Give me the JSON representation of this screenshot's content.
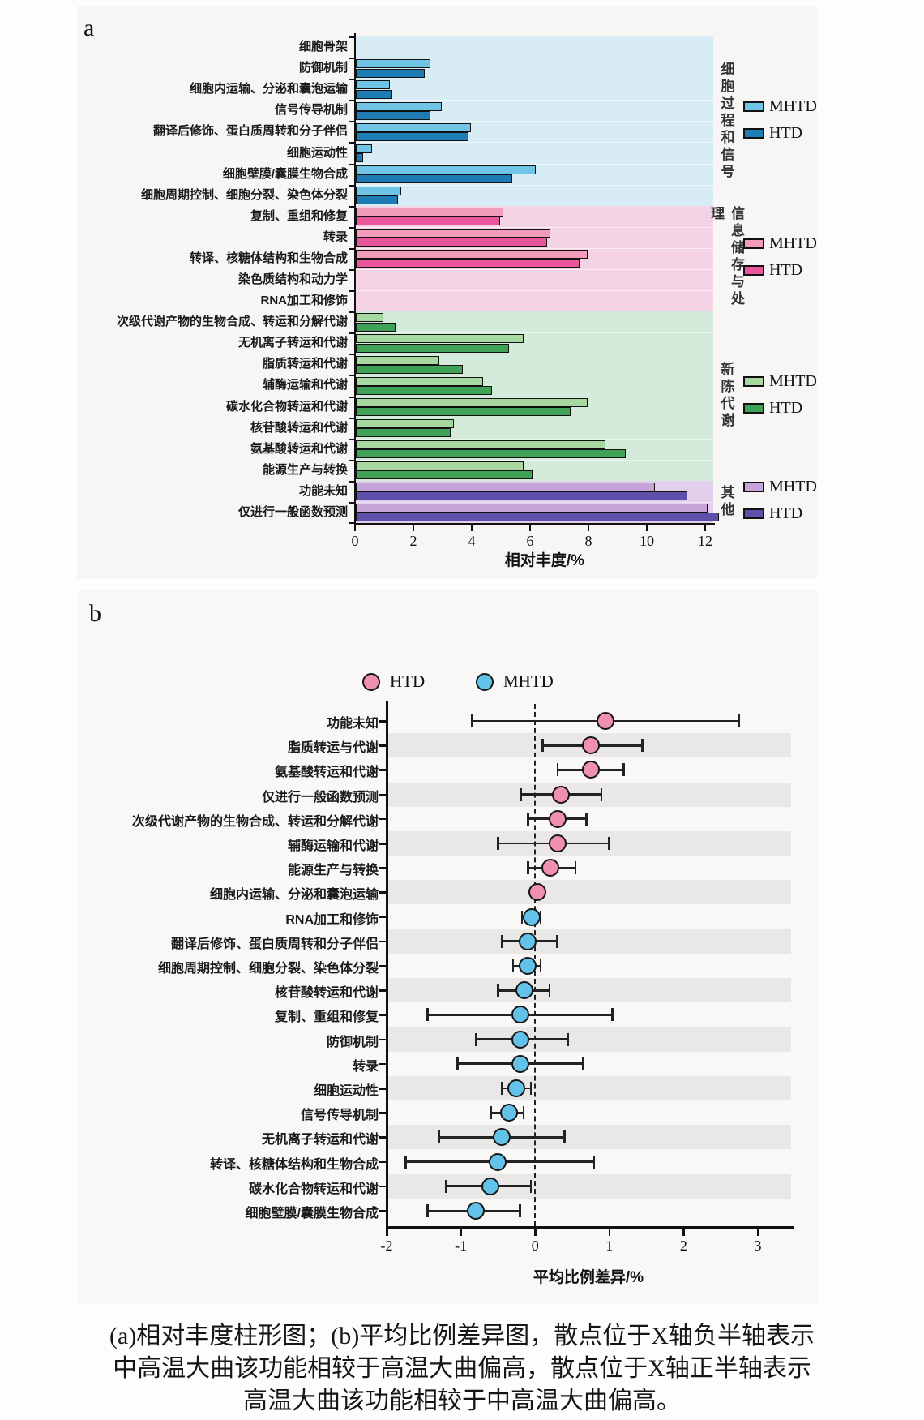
{
  "caption": {
    "lines": [
      "(a)相对丰度柱形图；(b)平均比例差异图，散点位于X轴负半轴表示",
      "中高温大曲该功能相较于高温大曲偏高，散点位于X轴正半轴表示",
      "高温大曲该功能相较于中高温大曲偏高。"
    ]
  },
  "chart_data": [
    {
      "id": "a",
      "panel_label": "a",
      "type": "bar",
      "orientation": "horizontal",
      "xlabel": "相对丰度/%",
      "x_ticks": [
        0,
        2,
        4,
        6,
        8,
        10,
        12
      ],
      "xlim": [
        0,
        13
      ],
      "grid": false,
      "legend_labels": [
        "MHTD",
        "HTD"
      ],
      "categories": [
        "细胞骨架",
        "防御机制",
        "细胞内运输、分泌和囊泡运输",
        "信号传导机制",
        "翻译后修饰、蛋白质周转和分子伴侣",
        "细胞运动性",
        "细胞壁膜/囊膜生物合成",
        "细胞周期控制、细胞分裂、染色体分裂",
        "复制、重组和修复",
        "转录",
        "转译、核糖体结构和生物合成",
        "染色质结构和动力学",
        "RNA加工和修饰",
        "次级代谢产物的生物合成、转运和分解代谢",
        "无机离子转运和代谢",
        "脂质转运和代谢",
        "辅酶运输和代谢",
        "碳水化合物转运和代谢",
        "核苷酸转运和代谢",
        "氨基酸转运和代谢",
        "能源生产与转换",
        "功能未知",
        "仅进行一般函数预测"
      ],
      "series": [
        {
          "name": "MHTD",
          "values": [
            0,
            2.5,
            1.1,
            2.9,
            3.9,
            0.5,
            6.1,
            1.5,
            5.0,
            6.6,
            7.9,
            0,
            0,
            0.9,
            5.7,
            2.8,
            4.3,
            7.9,
            3.3,
            8.5,
            5.7,
            10.2,
            12.0
          ]
        },
        {
          "name": "HTD",
          "values": [
            0,
            2.3,
            1.2,
            2.5,
            3.8,
            0.2,
            5.3,
            1.4,
            4.9,
            6.5,
            7.6,
            0,
            0,
            1.3,
            5.2,
            3.6,
            4.6,
            7.3,
            3.2,
            9.2,
            6.0,
            11.3,
            12.4
          ]
        }
      ],
      "groups": [
        {
          "label": "细胞过程和信号",
          "start": 0,
          "end": 8,
          "bg": "#d7ecf4",
          "mhtd_color": "#70c4e6",
          "htd_color": "#1d7cb4"
        },
        {
          "label": "信息储存与处理",
          "start": 8,
          "end": 13,
          "bg": "#f4d4e4",
          "mhtd_color": "#f19cbb",
          "htd_color": "#e9569b"
        },
        {
          "label": "新陈代谢",
          "start": 13,
          "end": 21,
          "bg": "#d4ebdc",
          "mhtd_color": "#a6d89f",
          "htd_color": "#3fa257"
        },
        {
          "label": "其他",
          "start": 21,
          "end": 23,
          "bg": "#e2cfeb",
          "mhtd_color": "#c6a3d8",
          "htd_color": "#5e50aa"
        }
      ]
    },
    {
      "id": "b",
      "panel_label": "b",
      "type": "scatter",
      "xlabel": "平均比例差异/%",
      "x_ticks": [
        -2,
        -1,
        0,
        1,
        2,
        3
      ],
      "xlim": [
        -2.1,
        3.45
      ],
      "zero_line": 0,
      "legend": [
        {
          "label": "HTD",
          "color": "#f08fae"
        },
        {
          "label": "MHTD",
          "color": "#62c2e8"
        }
      ],
      "points": [
        {
          "category": "功能未知",
          "series": "HTD",
          "value": 0.95,
          "ci": [
            -0.85,
            2.75
          ]
        },
        {
          "category": "脂质转运与代谢",
          "series": "HTD",
          "value": 0.75,
          "ci": [
            0.1,
            1.45
          ]
        },
        {
          "category": "氨基酸转运和代谢",
          "series": "HTD",
          "value": 0.75,
          "ci": [
            0.3,
            1.2
          ]
        },
        {
          "category": "仅进行一般函数预测",
          "series": "HTD",
          "value": 0.35,
          "ci": [
            -0.2,
            0.9
          ]
        },
        {
          "category": "次级代谢产物的生物合成、转运和分解代谢",
          "series": "HTD",
          "value": 0.3,
          "ci": [
            -0.1,
            0.7
          ]
        },
        {
          "category": "辅酶运输和代谢",
          "series": "HTD",
          "value": 0.3,
          "ci": [
            -0.5,
            1.0
          ]
        },
        {
          "category": "能源生产与转换",
          "series": "HTD",
          "value": 0.2,
          "ci": [
            -0.1,
            0.55
          ]
        },
        {
          "category": "细胞内运输、分泌和囊泡运输",
          "series": "HTD",
          "value": 0.03,
          "ci": [
            -0.04,
            0.1
          ]
        },
        {
          "category": "RNA加工和修饰",
          "series": "MHTD",
          "value": -0.05,
          "ci": [
            -0.18,
            0.08
          ]
        },
        {
          "category": "翻译后修饰、蛋白质周转和分子伴侣",
          "series": "MHTD",
          "value": -0.1,
          "ci": [
            -0.45,
            0.3
          ]
        },
        {
          "category": "细胞周期控制、细胞分裂、染色体分裂",
          "series": "MHTD",
          "value": -0.1,
          "ci": [
            -0.3,
            0.08
          ]
        },
        {
          "category": "核苷酸转运和代谢",
          "series": "MHTD",
          "value": -0.15,
          "ci": [
            -0.5,
            0.2
          ]
        },
        {
          "category": "复制、重组和修复",
          "series": "MHTD",
          "value": -0.2,
          "ci": [
            -1.45,
            1.05
          ]
        },
        {
          "category": "防御机制",
          "series": "MHTD",
          "value": -0.2,
          "ci": [
            -0.8,
            0.45
          ]
        },
        {
          "category": "转录",
          "series": "MHTD",
          "value": -0.2,
          "ci": [
            -1.05,
            0.65
          ]
        },
        {
          "category": "细胞运动性",
          "series": "MHTD",
          "value": -0.25,
          "ci": [
            -0.45,
            -0.05
          ]
        },
        {
          "category": "信号传导机制",
          "series": "MHTD",
          "value": -0.35,
          "ci": [
            -0.6,
            -0.15
          ]
        },
        {
          "category": "无机离子转运和代谢",
          "series": "MHTD",
          "value": -0.45,
          "ci": [
            -1.3,
            0.4
          ]
        },
        {
          "category": "转译、核糖体结构和生物合成",
          "series": "MHTD",
          "value": -0.5,
          "ci": [
            -1.75,
            0.8
          ]
        },
        {
          "category": "碳水化合物转运和代谢",
          "series": "MHTD",
          "value": -0.6,
          "ci": [
            -1.2,
            -0.05
          ]
        },
        {
          "category": "细胞壁膜/囊膜生物合成",
          "series": "MHTD",
          "value": -0.8,
          "ci": [
            -1.45,
            -0.2
          ]
        }
      ]
    }
  ]
}
